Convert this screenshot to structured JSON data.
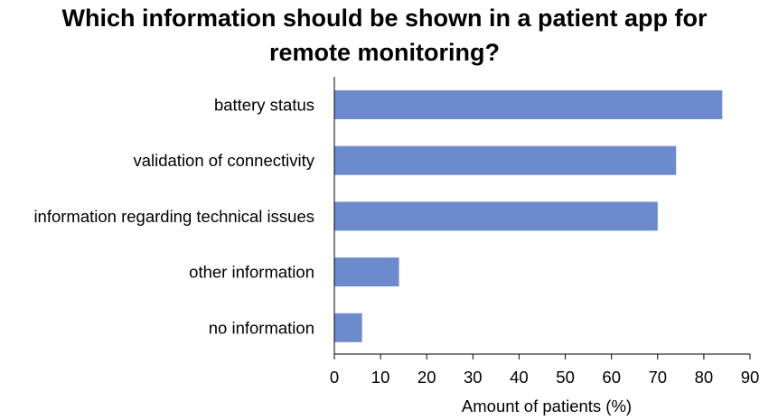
{
  "chart_data": {
    "type": "bar",
    "orientation": "horizontal",
    "title_lines": [
      "Which information should be shown in a patient app for",
      "remote monitoring?"
    ],
    "categories": [
      "battery status",
      "validation of connectivity",
      "information regarding technical issues",
      "other information",
      "no information"
    ],
    "values": [
      84,
      74,
      70,
      14,
      6
    ],
    "xlabel": "Amount of patients (%)",
    "ylabel": "",
    "xlim": [
      0,
      90
    ],
    "xticks": [
      "0",
      "10",
      "20",
      "30",
      "40",
      "50",
      "60",
      "70",
      "80",
      "90"
    ],
    "grid": false,
    "legend": "none",
    "bar_color": "#6d8bcc",
    "axis_color": "#000000"
  }
}
